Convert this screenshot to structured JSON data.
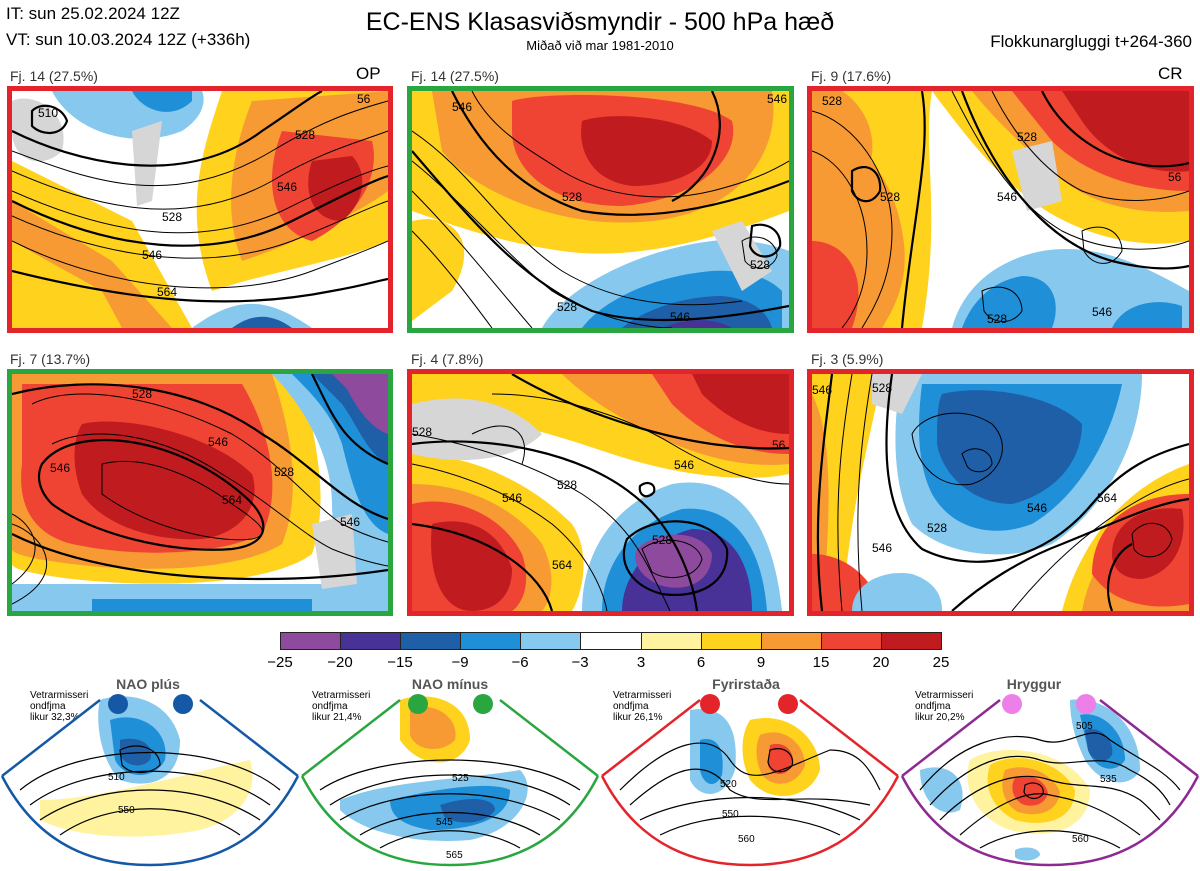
{
  "header": {
    "it_line": "IT: sun 25.02.2024 12Z",
    "vt_line": "VT: sun 10.03.2024 12Z  (+336h)",
    "title": "EC-ENS Klasasviðsmyndir - 500 hPa hæð",
    "subtitle": "Miðað við mar 1981-2010",
    "window_label": "Flokkunargluggi t+264-360"
  },
  "panels": [
    {
      "label": "Fj. 14 (27.5%)",
      "tag": "OP",
      "frame_color": "#e3252b",
      "contours": [
        "510",
        "528",
        "546",
        "564",
        "546",
        "528",
        "56"
      ]
    },
    {
      "label": "Fj. 14 (27.5%)",
      "tag": "",
      "frame_color": "#2aa640",
      "contours": [
        "528",
        "546",
        "528",
        "528",
        "546",
        "546"
      ]
    },
    {
      "label": "Fj. 9 (17.6%)",
      "tag": "CR",
      "frame_color": "#e3252b",
      "contours": [
        "528",
        "528",
        "546",
        "528",
        "528",
        "546",
        "56"
      ]
    },
    {
      "label": "Fj. 7 (13.7%)",
      "tag": "",
      "frame_color": "#2aa640",
      "contours": [
        "546",
        "528",
        "546",
        "528",
        "564",
        "546"
      ]
    },
    {
      "label": "Fj. 4 (7.8%)",
      "tag": "",
      "frame_color": "#e3252b",
      "contours": [
        "528",
        "546",
        "528",
        "564",
        "546",
        "528",
        "56"
      ]
    },
    {
      "label": "Fj. 3 (5.9%)",
      "tag": "",
      "frame_color": "#e3252b",
      "contours": [
        "546",
        "528",
        "546",
        "528",
        "564",
        "546"
      ]
    }
  ],
  "colorbar": {
    "ticks": [
      "−25",
      "−20",
      "−15",
      "−9",
      "−6",
      "−3",
      "3",
      "6",
      "9",
      "15",
      "20",
      "25"
    ],
    "colors": [
      "#8e4a9c",
      "#483197",
      "#1f5fa8",
      "#1f8fd8",
      "#86c8ee",
      "#ffffff",
      "#fff3a0",
      "#ffd21e",
      "#f79a34",
      "#ef4433",
      "#c01b1e"
    ]
  },
  "regimes": [
    {
      "name": "NAO plús",
      "note": "Vetrarmisseri\nondfjma\nlikur 32,3%",
      "color": "#1458a6",
      "contours": [
        "510",
        "550"
      ]
    },
    {
      "name": "NAO mínus",
      "note": "Vetrarmisseri\nondfjma\nlikur 21,4%",
      "color": "#2aa640",
      "contours": [
        "525",
        "545",
        "565"
      ]
    },
    {
      "name": "Fyrirstaða",
      "note": "Vetrarmisseri\nondfjma\nlikur 26,1%",
      "color": "#e3252b",
      "contours": [
        "520",
        "550",
        "560"
      ]
    },
    {
      "name": "Hryggur",
      "note": "Vetrarmisseri\nondfjma\nlikur 20,2%",
      "color": "#ee7ee8",
      "contours": [
        "505",
        "535",
        "560"
      ]
    }
  ]
}
